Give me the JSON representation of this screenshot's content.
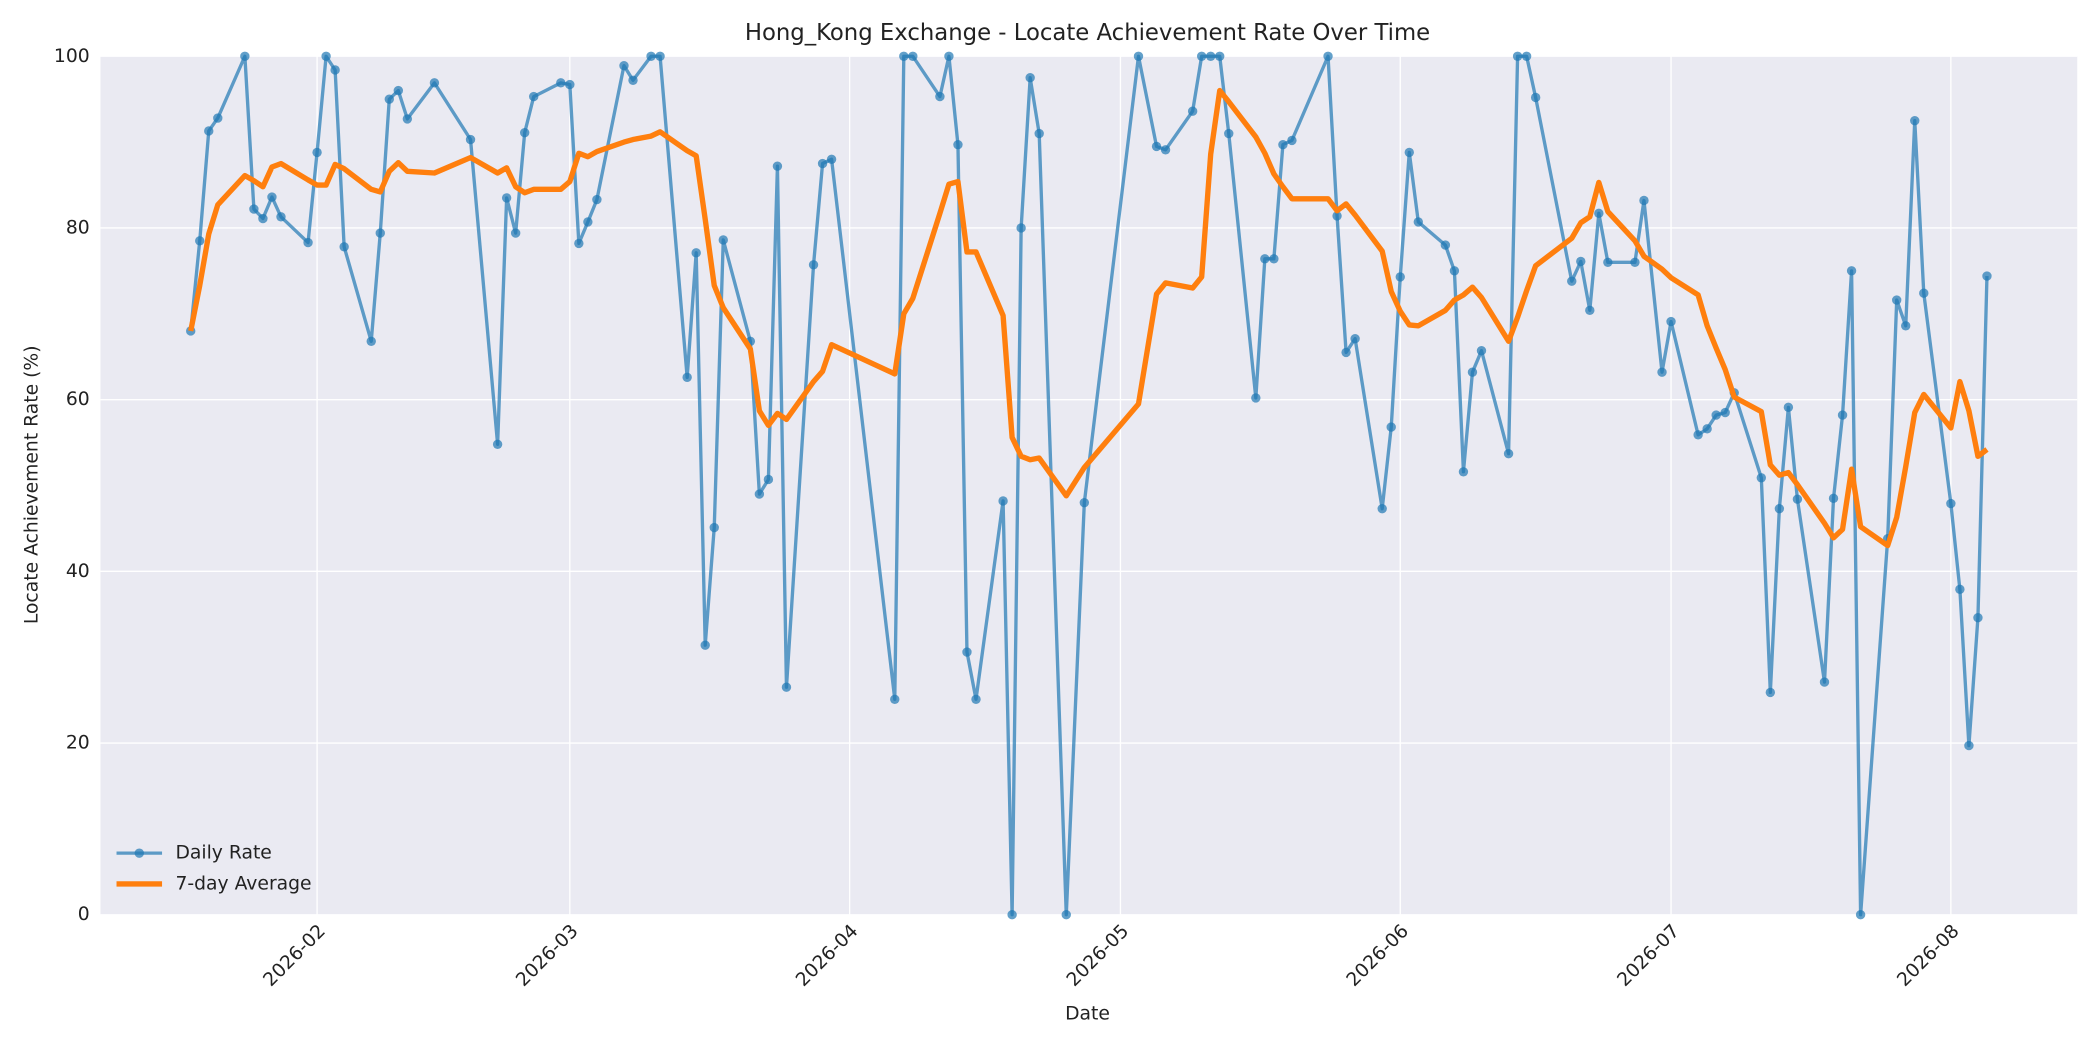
{
  "chart_data": {
    "type": "line",
    "title": "Hong_Kong Exchange - Locate Achievement Rate Over Time",
    "xlabel": "Date",
    "ylabel": "Locate Achievement Rate (%)",
    "x": [
      "2026-01-18",
      "2026-01-19",
      "2026-01-20",
      "2026-01-21",
      "2026-01-24",
      "2026-01-25",
      "2026-01-26",
      "2026-01-27",
      "2026-01-28",
      "2026-01-31",
      "2026-02-01",
      "2026-02-02",
      "2026-02-03",
      "2026-02-04",
      "2026-02-07",
      "2026-02-08",
      "2026-02-09",
      "2026-02-10",
      "2026-02-11",
      "2026-02-14",
      "2026-02-18",
      "2026-02-21",
      "2026-02-22",
      "2026-02-23",
      "2026-02-24",
      "2026-02-25",
      "2026-02-28",
      "2026-03-01",
      "2026-03-02",
      "2026-03-03",
      "2026-03-04",
      "2026-03-07",
      "2026-03-08",
      "2026-03-10",
      "2026-03-11",
      "2026-03-14",
      "2026-03-15",
      "2026-03-16",
      "2026-03-17",
      "2026-03-18",
      "2026-03-21",
      "2026-03-22",
      "2026-03-23",
      "2026-03-24",
      "2026-03-25",
      "2026-03-28",
      "2026-03-29",
      "2026-03-30",
      "2026-04-06",
      "2026-04-07",
      "2026-04-08",
      "2026-04-11",
      "2026-04-12",
      "2026-04-13",
      "2026-04-14",
      "2026-04-15",
      "2026-04-18",
      "2026-04-19",
      "2026-04-20",
      "2026-04-21",
      "2026-04-22",
      "2026-04-25",
      "2026-04-27",
      "2026-05-03",
      "2026-05-05",
      "2026-05-06",
      "2026-05-09",
      "2026-05-10",
      "2026-05-11",
      "2026-05-12",
      "2026-05-13",
      "2026-05-16",
      "2026-05-17",
      "2026-05-18",
      "2026-05-19",
      "2026-05-20",
      "2026-05-24",
      "2026-05-25",
      "2026-05-26",
      "2026-05-27",
      "2026-05-30",
      "2026-05-31",
      "2026-06-01",
      "2026-06-02",
      "2026-06-03",
      "2026-06-06",
      "2026-06-07",
      "2026-06-08",
      "2026-06-09",
      "2026-06-10",
      "2026-06-13",
      "2026-06-14",
      "2026-06-15",
      "2026-06-16",
      "2026-06-20",
      "2026-06-21",
      "2026-06-22",
      "2026-06-23",
      "2026-06-24",
      "2026-06-27",
      "2026-06-28",
      "2026-06-30",
      "2026-07-01",
      "2026-07-04",
      "2026-07-05",
      "2026-07-06",
      "2026-07-07",
      "2026-07-08",
      "2026-07-11",
      "2026-07-12",
      "2026-07-13",
      "2026-07-14",
      "2026-07-15",
      "2026-07-18",
      "2026-07-19",
      "2026-07-20",
      "2026-07-21",
      "2026-07-22",
      "2026-07-25",
      "2026-07-26",
      "2026-07-27",
      "2026-07-28",
      "2026-07-29",
      "2026-08-01",
      "2026-08-02",
      "2026-08-03",
      "2026-08-04",
      "2026-08-05"
    ],
    "series": [
      {
        "name": "Daily Rate",
        "color": "#1f77b4",
        "markers": true,
        "values": [
          68,
          78.5,
          91.3,
          92.8,
          100,
          82.2,
          81.1,
          83.6,
          81.3,
          78.3,
          88.8,
          100,
          98.4,
          77.8,
          66.8,
          79.4,
          95,
          96,
          92.7,
          96.9,
          90.3,
          54.8,
          83.5,
          79.4,
          91.1,
          95.3,
          96.9,
          96.7,
          78.2,
          80.7,
          83.3,
          98.9,
          97.2,
          100,
          100,
          62.6,
          77.1,
          31.4,
          45.1,
          78.6,
          66.8,
          49,
          50.7,
          87.2,
          26.5,
          75.7,
          87.5,
          88,
          25.1,
          100,
          100,
          95.3,
          100,
          89.7,
          30.6,
          25.1,
          48.2,
          0,
          80,
          97.5,
          91,
          0,
          48,
          100,
          89.5,
          89.1,
          93.6,
          100,
          100,
          100,
          91,
          60.2,
          76.4,
          76.4,
          89.7,
          90.2,
          100,
          81.4,
          65.5,
          67.1,
          47.3,
          56.8,
          74.3,
          88.8,
          80.7,
          78,
          75,
          51.6,
          63.2,
          65.7,
          53.7,
          100,
          100,
          95.2,
          73.8,
          76.1,
          70.4,
          81.7,
          76,
          76,
          83.2,
          63.2,
          69.1,
          55.9,
          56.6,
          58.2,
          58.5,
          60.8,
          50.9,
          25.9,
          47.3,
          59.1,
          48.4,
          27.1,
          48.5,
          58.2,
          75,
          0,
          43.8,
          71.6,
          68.6,
          92.5,
          72.4,
          47.9,
          37.9,
          19.7,
          34.6,
          74.4
        ]
      },
      {
        "name": "7-day Average",
        "color": "#ff7f0e",
        "markers": false,
        "values": [
          68,
          73.3,
          79.3,
          82.7,
          86.1,
          85.5,
          84.8,
          87.1,
          87.5,
          85.6,
          85,
          85,
          87.4,
          86.9,
          84.5,
          84.2,
          86.6,
          87.6,
          86.6,
          86.4,
          88.2,
          86.4,
          87,
          84.8,
          84.1,
          84.5,
          84.5,
          85.4,
          88.7,
          88.3,
          88.9,
          90,
          90.3,
          90.7,
          91.2,
          89,
          88.4,
          81,
          73.3,
          70.7,
          65.9,
          58.7,
          57,
          58.4,
          57.7,
          62.1,
          63.3,
          66.4,
          63,
          70,
          71.8,
          81.7,
          85.1,
          85.4,
          77.2,
          77.2,
          69.8,
          55.6,
          53.4,
          53,
          53.2,
          48.8,
          52.1,
          59.5,
          72.3,
          73.6,
          73,
          74.3,
          88.6,
          96,
          94.7,
          90.6,
          88.7,
          86.3,
          84.8,
          83.4,
          83.4,
          82,
          82.8,
          81.5,
          77.3,
          72.6,
          70.3,
          68.7,
          68.6,
          70.4,
          71.6,
          72.2,
          73.1,
          71.9,
          66.8,
          69.6,
          72.7,
          75.6,
          78.8,
          80.6,
          81.3,
          85.3,
          81.9,
          78.5,
          76.7,
          75.2,
          74.2,
          72.2,
          68.6,
          66,
          63.5,
          60.3,
          58.6,
          52.4,
          51.2,
          51.5,
          50.1,
          45.6,
          43.9,
          44.9,
          51.9,
          45.2,
          43,
          46.3,
          52.2,
          58.5,
          60.6,
          56.7,
          62.1,
          58.7,
          53.4,
          54.2
        ]
      }
    ],
    "xlim": [
      "2026-01-08",
      "2026-08-15"
    ],
    "xticks": [
      {
        "value": "2026-02-01",
        "label": "2026-02"
      },
      {
        "value": "2026-03-01",
        "label": "2026-03"
      },
      {
        "value": "2026-04-01",
        "label": "2026-04"
      },
      {
        "value": "2026-05-01",
        "label": "2026-05"
      },
      {
        "value": "2026-06-01",
        "label": "2026-06"
      },
      {
        "value": "2026-07-01",
        "label": "2026-07"
      },
      {
        "value": "2026-08-01",
        "label": "2026-08"
      }
    ],
    "ylim": [
      0,
      100
    ],
    "yticks": [
      0,
      20,
      40,
      60,
      80,
      100
    ],
    "grid": true,
    "legend": "lower left"
  }
}
